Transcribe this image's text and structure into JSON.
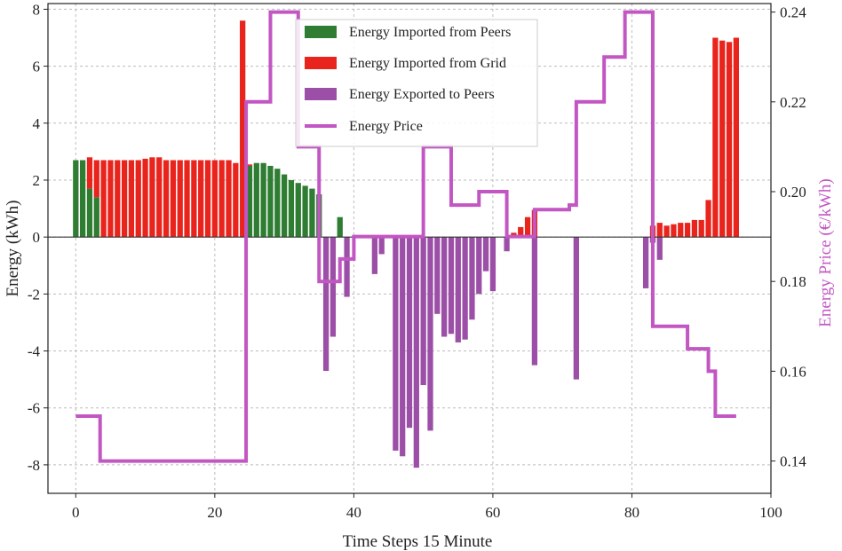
{
  "chart_data": {
    "type": "bar",
    "xlabel": "Time Steps 15 Minute",
    "ylabel": "Energy (kWh)",
    "y2label": "Energy Price (€/kWh)",
    "xlim": [
      -4,
      100
    ],
    "ylim": [
      -9,
      8.2
    ],
    "y2lim": [
      0.1328,
      0.2419
    ],
    "grid": true,
    "legend_position": "top-center",
    "x_ticks": [
      0,
      20,
      40,
      60,
      80,
      100
    ],
    "y_ticks": [
      -8,
      -6,
      -4,
      -2,
      0,
      2,
      4,
      6,
      8
    ],
    "y2_ticks": [
      0.14,
      0.16,
      0.18,
      0.2,
      0.22,
      0.24
    ],
    "legend": [
      {
        "label": "Energy Imported from Peers",
        "color": "#2e7d32"
      },
      {
        "label": "Energy Imported from Grid",
        "color": "#e8241c"
      },
      {
        "label": "Energy Exported to Peers",
        "color": "#9c4fa6"
      },
      {
        "label": "Energy Price",
        "color": "#c256c2"
      }
    ],
    "series": [
      {
        "name": "Energy Imported from Peers",
        "color": "#2e7d32",
        "start_x": 0,
        "values": [
          2.7,
          2.7,
          1.7,
          1.4,
          0,
          0,
          0,
          0,
          0,
          0,
          0,
          0,
          0,
          0,
          0,
          0,
          0,
          0,
          0,
          0,
          0,
          0,
          0,
          0,
          0,
          2.5,
          2.6,
          2.6,
          2.5,
          2.4,
          2.2,
          2.0,
          1.9,
          1.8,
          1.7,
          1.5,
          0,
          0,
          0.7
        ]
      },
      {
        "name": "Energy Imported from Grid",
        "color": "#e8241c",
        "start_x": 0,
        "values": [
          0,
          0,
          1.1,
          1.3,
          2.7,
          2.7,
          2.7,
          2.7,
          2.7,
          2.7,
          2.75,
          2.8,
          2.8,
          2.7,
          2.7,
          2.7,
          2.7,
          2.7,
          2.7,
          2.7,
          2.7,
          2.7,
          2.7,
          2.6,
          7.6,
          0.05,
          0,
          0,
          0,
          0,
          0,
          0,
          0,
          0,
          0,
          0,
          0,
          0,
          0,
          0,
          0,
          0,
          0,
          0,
          0,
          0,
          0,
          0,
          0,
          0,
          0,
          0,
          0,
          0,
          0,
          0,
          0,
          0,
          0,
          0,
          0,
          0,
          0,
          0.15,
          0.35,
          0.7,
          0.95,
          0,
          0,
          0,
          0,
          0,
          0,
          0,
          0,
          0,
          0,
          0,
          0,
          0,
          0,
          0,
          0,
          0.4,
          0.5,
          0.4,
          0.45,
          0.5,
          0.5,
          0.6,
          0.6,
          1.3,
          7.0,
          6.9,
          6.85,
          7.0
        ]
      },
      {
        "name": "Energy Exported to Peers",
        "color": "#9c4fa6",
        "start_x": 36,
        "values": [
          -4.7,
          -3.5,
          0,
          -2.1,
          0,
          0,
          0,
          -1.3,
          -0.6,
          0,
          -7.5,
          -7.7,
          -6.7,
          -8.1,
          -5.2,
          -6.8,
          -2.7,
          -3.5,
          -3.4,
          -3.7,
          -3.6,
          -2.9,
          -2.0,
          -1.2,
          -1.9,
          0,
          -0.5,
          0,
          0,
          0,
          -4.5,
          0,
          0,
          0,
          0,
          0,
          -5.0,
          0,
          0,
          0,
          0,
          0,
          0,
          0,
          0,
          0,
          -1.8,
          -0.2,
          -0.8
        ]
      },
      {
        "name": "Energy Price",
        "color": "#c256c2",
        "type": "step",
        "points": [
          [
            0,
            0.15
          ],
          [
            3.5,
            0.14
          ],
          [
            24.5,
            0.22
          ],
          [
            28,
            0.24
          ],
          [
            32,
            0.21
          ],
          [
            35,
            0.18
          ],
          [
            38,
            0.185
          ],
          [
            40,
            0.19
          ],
          [
            50,
            0.21
          ],
          [
            54,
            0.197
          ],
          [
            58,
            0.2
          ],
          [
            62,
            0.19
          ],
          [
            66,
            0.196
          ],
          [
            71,
            0.197
          ],
          [
            72,
            0.22
          ],
          [
            76,
            0.23
          ],
          [
            79,
            0.24
          ],
          [
            83,
            0.17
          ],
          [
            88,
            0.165
          ],
          [
            91,
            0.16
          ],
          [
            92,
            0.15
          ],
          [
            95,
            0.15
          ]
        ]
      }
    ]
  }
}
